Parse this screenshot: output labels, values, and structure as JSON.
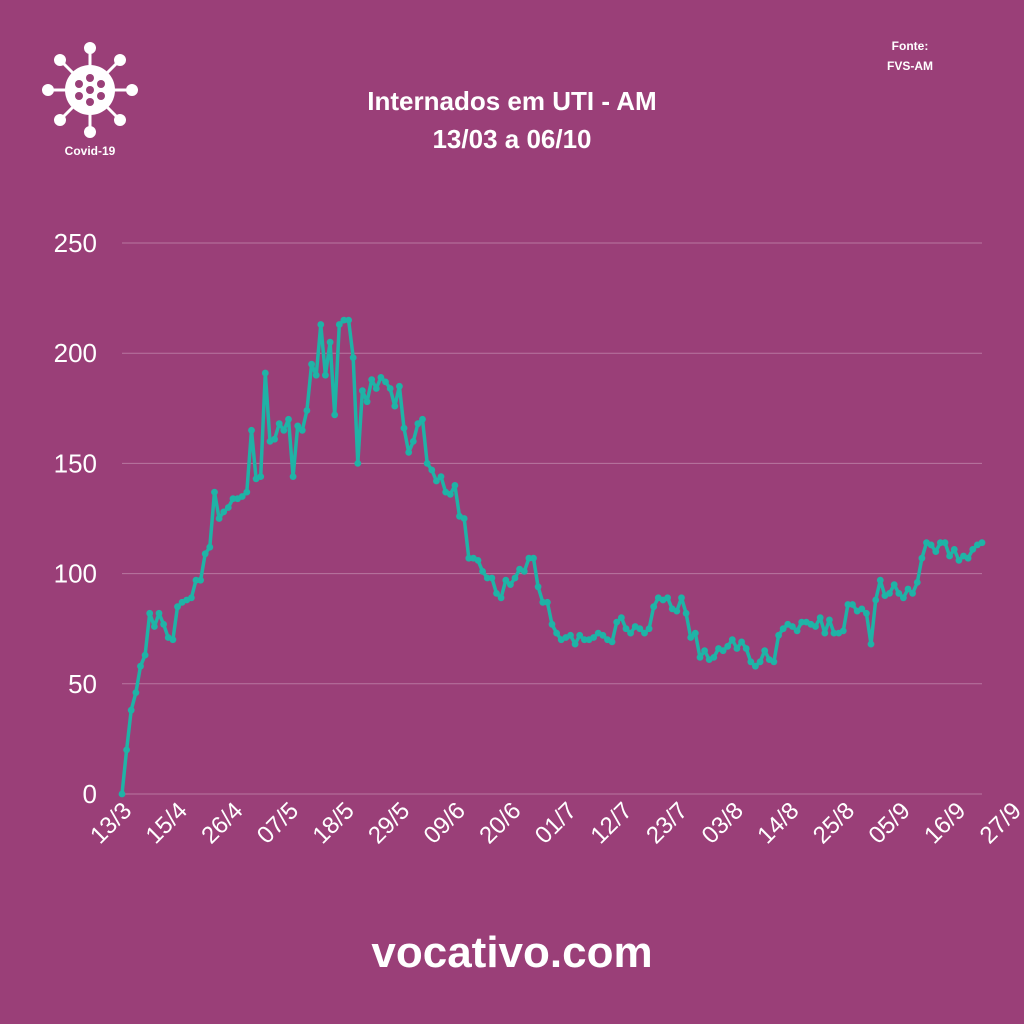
{
  "header": {
    "title_line1": "Internados em UTI - AM",
    "title_line2": "13/03 a 06/10",
    "source_label": "Fonte:",
    "source_value": "FVS-AM"
  },
  "logo": {
    "icon": "virus-icon",
    "label": "Covid-19"
  },
  "footer": {
    "site": "vocativo.com"
  },
  "colors": {
    "background": "#9a3f78",
    "line": "#1fb3a6",
    "grid": "#b877a0",
    "text": "#ffffff"
  },
  "chart_data": {
    "type": "line",
    "title": "Internados em UTI - AM",
    "subtitle": "13/03 a 06/10",
    "xlabel": "",
    "ylabel": "",
    "ylim": [
      0,
      250
    ],
    "yticks": [
      0,
      50,
      100,
      150,
      200,
      250
    ],
    "xtick_labels": [
      "13/3",
      "15/4",
      "26/4",
      "07/5",
      "18/5",
      "29/5",
      "09/6",
      "20/6",
      "01/7",
      "12/7",
      "23/7",
      "03/8",
      "14/8",
      "25/8",
      "05/9",
      "16/9",
      "27/9"
    ],
    "grid": true,
    "series": [
      {
        "name": "",
        "values": [
          0,
          20,
          38,
          46,
          58,
          63,
          82,
          76,
          82,
          77,
          71,
          70,
          85,
          87,
          88,
          89,
          97,
          97,
          109,
          112,
          137,
          125,
          128,
          130,
          134,
          134,
          135,
          137,
          165,
          143,
          144,
          191,
          160,
          161,
          168,
          165,
          170,
          144,
          167,
          165,
          174,
          195,
          190,
          213,
          190,
          205,
          172,
          213,
          215,
          215,
          198,
          150,
          183,
          178,
          188,
          184,
          189,
          187,
          184,
          176,
          185,
          166,
          155,
          160,
          168,
          170,
          150,
          147,
          142,
          144,
          137,
          136,
          140,
          126,
          125,
          107,
          107,
          106,
          101,
          98,
          98,
          91,
          89,
          97,
          95,
          98,
          102,
          101,
          107,
          107,
          94,
          87,
          87,
          77,
          73,
          70,
          71,
          72,
          68,
          72,
          70,
          70,
          71,
          73,
          72,
          70,
          69,
          78,
          80,
          75,
          73,
          76,
          75,
          73,
          75,
          85,
          89,
          88,
          89,
          84,
          83,
          89,
          82,
          71,
          73,
          62,
          65,
          61,
          62,
          66,
          65,
          67,
          70,
          66,
          69,
          66,
          60,
          58,
          60,
          65,
          61,
          60,
          72,
          75,
          77,
          76,
          74,
          78,
          78,
          77,
          76,
          80,
          73,
          79,
          73,
          73,
          74,
          86,
          86,
          83,
          84,
          82,
          68,
          88,
          97,
          90,
          91,
          95,
          91,
          89,
          93,
          91,
          96,
          107,
          114,
          113,
          110,
          114,
          114,
          108,
          111,
          106,
          108,
          107,
          111,
          113,
          114
        ]
      }
    ]
  }
}
